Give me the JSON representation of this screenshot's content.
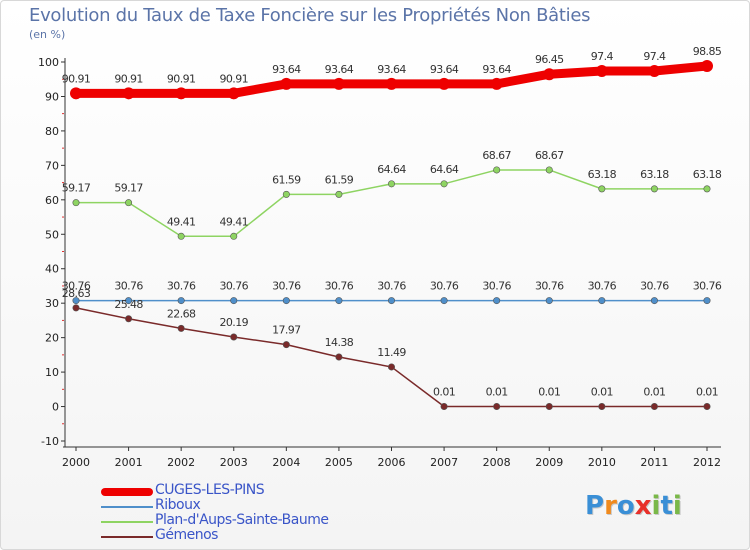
{
  "title": "Evolution du Taux de Taxe Foncière sur les Propriétés Non Bâties",
  "subtitle": "(en %)",
  "brand": {
    "name": "Proxiti",
    "letters": [
      "P",
      "r",
      "o",
      "x",
      "i",
      "t",
      "i"
    ],
    "colors": [
      "#3a8fd6",
      "#f08a1d",
      "#3a8fd6",
      "#e8302a",
      "#7ab848",
      "#3a8fd6",
      "#7ab848"
    ]
  },
  "chart_data": {
    "type": "line",
    "title": "Evolution du Taux de Taxe Foncière sur les Propriétés Non Bâties",
    "ylabel": "(en %)",
    "xlabel": "",
    "ylim": [
      -10,
      100
    ],
    "yticks": [
      -10,
      0,
      10,
      20,
      30,
      40,
      50,
      60,
      70,
      80,
      90,
      100
    ],
    "grid": false,
    "legend_position": "bottom-left",
    "categories": [
      "2000",
      "2001",
      "2002",
      "2003",
      "2004",
      "2005",
      "2006",
      "2007",
      "2008",
      "2009",
      "2010",
      "2011",
      "2012"
    ],
    "series": [
      {
        "name": "CUGES-LES-PINS",
        "color": "#ee0000",
        "emphasis": "bold",
        "values": [
          90.91,
          90.91,
          90.91,
          90.91,
          93.64,
          93.64,
          93.64,
          93.64,
          93.64,
          96.45,
          97.4,
          97.4,
          98.85
        ],
        "labels": [
          "90.91",
          "90.91",
          "90.91",
          "90.91",
          "93.64",
          "93.64",
          "93.64",
          "93.64",
          "93.64",
          "96.45",
          "97.4",
          "97.4",
          "98.85"
        ]
      },
      {
        "name": "Riboux",
        "color": "#4f8fca",
        "values": [
          30.76,
          30.76,
          30.76,
          30.76,
          30.76,
          30.76,
          30.76,
          30.76,
          30.76,
          30.76,
          30.76,
          30.76,
          30.76
        ],
        "labels": [
          "30.76",
          "30.76",
          "30.76",
          "30.76",
          "30.76",
          "30.76",
          "30.76",
          "30.76",
          "30.76",
          "30.76",
          "30.76",
          "30.76",
          "30.76"
        ]
      },
      {
        "name": "Plan-d'Aups-Sainte-Baume",
        "color": "#8ed462",
        "values": [
          59.17,
          59.17,
          49.41,
          49.41,
          61.59,
          61.59,
          64.64,
          64.64,
          68.67,
          68.67,
          63.18,
          63.18,
          63.18
        ],
        "labels": [
          "59.17",
          "59.17",
          "49.41",
          "49.41",
          "61.59",
          "61.59",
          "64.64",
          "64.64",
          "68.67",
          "68.67",
          "63.18",
          "63.18",
          "63.18"
        ]
      },
      {
        "name": "Gémenos",
        "color": "#7a2a2a",
        "values": [
          28.63,
          25.48,
          22.68,
          20.19,
          17.97,
          14.38,
          11.49,
          0.01,
          0.01,
          0.01,
          0.01,
          0.01,
          0.01
        ],
        "labels": [
          "28.63",
          "25.48",
          "22.68",
          "20.19",
          "17.97",
          "14.38",
          "11.49",
          "0.01",
          "0.01",
          "0.01",
          "0.01",
          "0.01",
          "0.01"
        ]
      }
    ]
  }
}
